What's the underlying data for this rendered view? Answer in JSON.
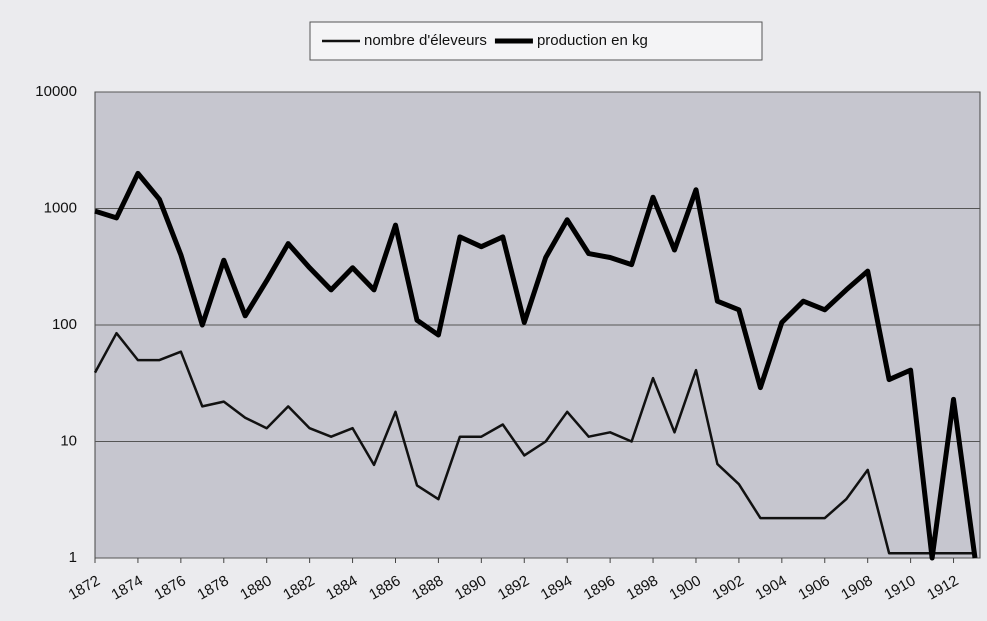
{
  "chart_data": {
    "type": "line",
    "x": [
      1872,
      1873,
      1874,
      1875,
      1876,
      1877,
      1878,
      1879,
      1880,
      1881,
      1882,
      1883,
      1884,
      1885,
      1886,
      1887,
      1888,
      1889,
      1890,
      1891,
      1892,
      1893,
      1894,
      1895,
      1896,
      1897,
      1898,
      1899,
      1900,
      1901,
      1902,
      1903,
      1904,
      1905,
      1906,
      1907,
      1908,
      1909,
      1910,
      1911,
      1912,
      1913
    ],
    "xlim": [
      1872,
      1913
    ],
    "xticks": [
      1872,
      1874,
      1876,
      1878,
      1880,
      1882,
      1884,
      1886,
      1888,
      1890,
      1892,
      1894,
      1896,
      1898,
      1900,
      1902,
      1904,
      1906,
      1908,
      1910,
      1912
    ],
    "ylim": [
      1,
      10000
    ],
    "yticks": [
      1,
      10,
      100,
      1000,
      10000
    ],
    "log_y": true,
    "grid": true,
    "legend": "top",
    "series": [
      {
        "name": "nombre d'éleveurs",
        "color": "#111111",
        "line_width": 2.5,
        "values": [
          39,
          85,
          50,
          50,
          59,
          20,
          22,
          16,
          13,
          20,
          13,
          11,
          13,
          6.3,
          18,
          4.2,
          3.2,
          11,
          11,
          14,
          7.6,
          10,
          18,
          11,
          12,
          10,
          35,
          12,
          41,
          6.4,
          4.3,
          2.2,
          2.2,
          2.2,
          2.2,
          3.2,
          5.7,
          1.1,
          1.1,
          1.1,
          1.1,
          1.1
        ]
      },
      {
        "name": "production en kg",
        "color": "#000000",
        "line_width": 5,
        "values": [
          950,
          830,
          2000,
          1200,
          400,
          100,
          360,
          120,
          240,
          500,
          310,
          200,
          310,
          200,
          720,
          110,
          82,
          570,
          470,
          570,
          105,
          380,
          800,
          410,
          380,
          330,
          1250,
          440,
          1450,
          160,
          135,
          29,
          105,
          160,
          135,
          200,
          290,
          34,
          41,
          1,
          23,
          1
        ]
      }
    ]
  }
}
